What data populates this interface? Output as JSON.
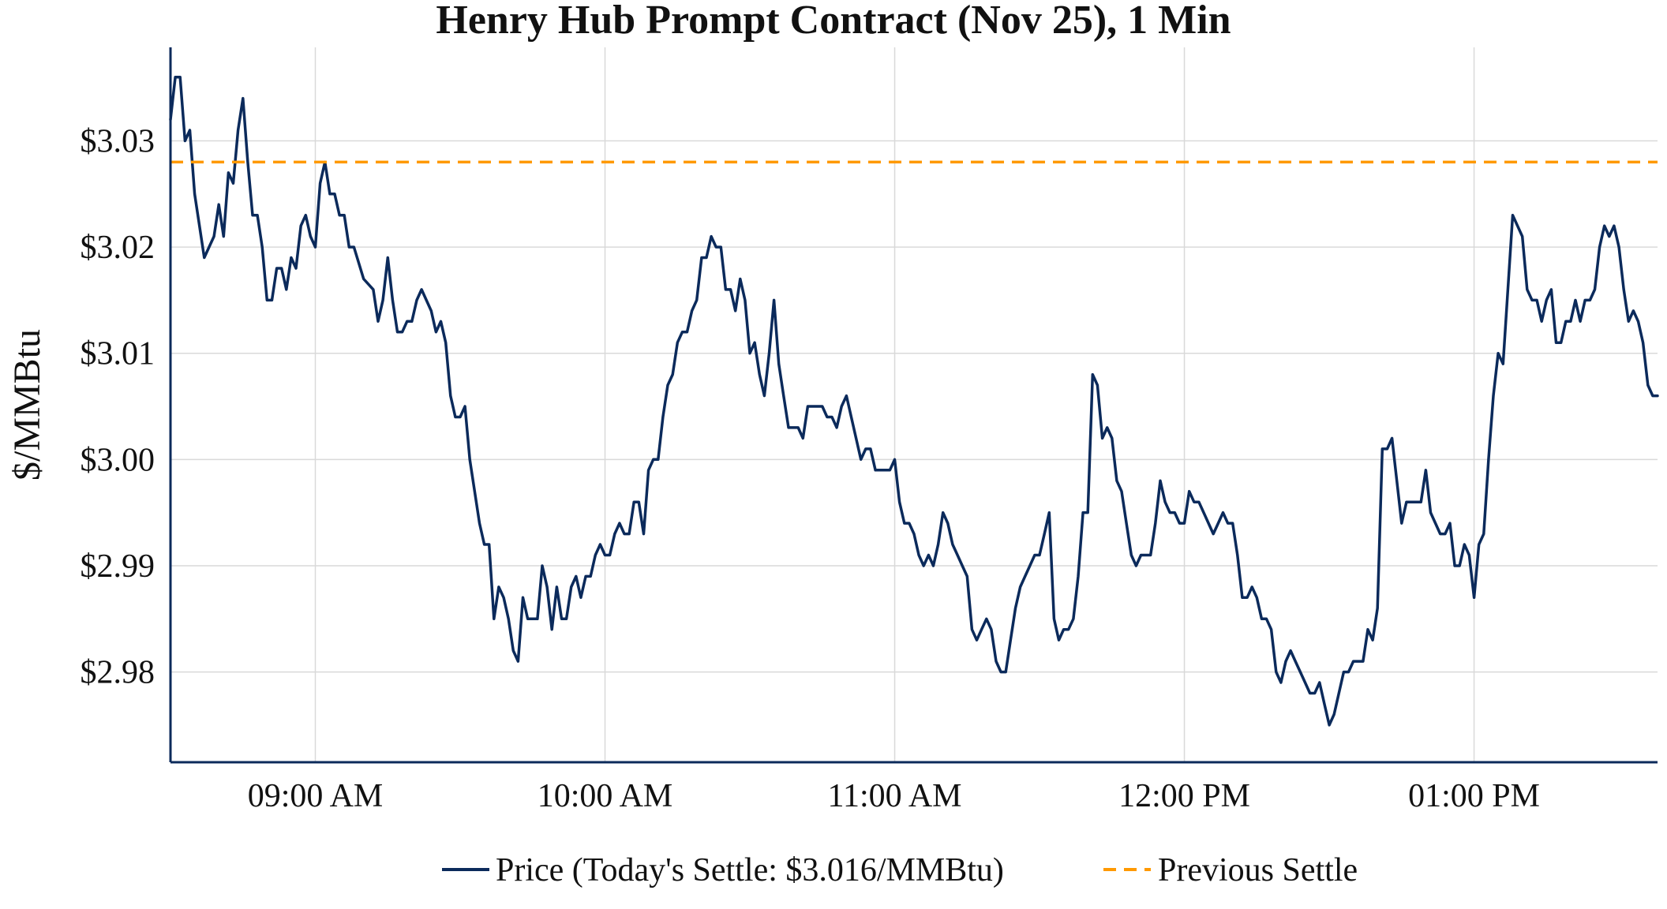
{
  "chart_data": {
    "type": "line",
    "title": "Henry Hub Prompt Contract (Nov 25), 1 Min",
    "ylabel": "$/MMBtu",
    "xlabel": "",
    "ylim": [
      2.9715,
      3.0388
    ],
    "y_ticks": [
      2.98,
      2.99,
      3.0,
      3.01,
      3.02,
      3.03
    ],
    "y_tick_labels": [
      "$2.98",
      "$2.99",
      "$3.00",
      "$3.01",
      "$3.02",
      "$3.03"
    ],
    "x_range": [
      "08:30",
      "13:38"
    ],
    "x_ticks": [
      "09:00",
      "10:00",
      "11:00",
      "12:00",
      "13:00"
    ],
    "x_tick_labels": [
      "09:00 AM",
      "10:00 AM",
      "11:00 AM",
      "12:00 PM",
      "01:00 PM"
    ],
    "grid": true,
    "legend_position": "bottom-center",
    "series": [
      {
        "name": "Price (Today's Settle: $3.016/MMBtu)",
        "color": "#0b2a5b",
        "style": "solid",
        "x": [
          "08:30",
          "08:31",
          "08:32",
          "08:33",
          "08:34",
          "08:35",
          "08:37",
          "08:38",
          "08:39",
          "08:40",
          "08:41",
          "08:42",
          "08:43",
          "08:44",
          "08:45",
          "08:46",
          "08:47",
          "08:48",
          "08:49",
          "08:50",
          "08:51",
          "08:52",
          "08:53",
          "08:54",
          "08:55",
          "08:56",
          "08:57",
          "08:58",
          "08:59",
          "09:00",
          "09:01",
          "09:02",
          "09:03",
          "09:04",
          "09:05",
          "09:06",
          "09:07",
          "09:08",
          "09:10",
          "09:12",
          "09:13",
          "09:14",
          "09:15",
          "09:16",
          "09:17",
          "09:18",
          "09:19",
          "09:20",
          "09:21",
          "09:22",
          "09:23",
          "09:24",
          "09:25",
          "09:26",
          "09:27",
          "09:28",
          "09:29",
          "09:30",
          "09:31",
          "09:32",
          "09:34",
          "09:35",
          "09:36",
          "09:37",
          "09:38",
          "09:39",
          "09:40",
          "09:41",
          "09:42",
          "09:43",
          "09:44",
          "09:45",
          "09:46",
          "09:47",
          "09:48",
          "09:49",
          "09:50",
          "09:51",
          "09:52",
          "09:53",
          "09:54",
          "09:55",
          "09:56",
          "09:57",
          "09:58",
          "09:59",
          "10:00",
          "10:01",
          "10:02",
          "10:03",
          "10:04",
          "10:05",
          "10:06",
          "10:07",
          "10:08",
          "10:09",
          "10:10",
          "10:11",
          "10:12",
          "10:13",
          "10:14",
          "10:15",
          "10:16",
          "10:17",
          "10:18",
          "10:19",
          "10:20",
          "10:21",
          "10:22",
          "10:23",
          "10:24",
          "10:25",
          "10:26",
          "10:27",
          "10:28",
          "10:29",
          "10:30",
          "10:31",
          "10:32",
          "10:33",
          "10:34",
          "10:35",
          "10:36",
          "10:37",
          "10:38",
          "10:39",
          "10:40",
          "10:41",
          "10:42",
          "10:43",
          "10:44",
          "10:45",
          "10:46",
          "10:47",
          "10:48",
          "10:49",
          "10:50",
          "10:51",
          "10:52",
          "10:53",
          "10:54",
          "10:55",
          "10:56",
          "10:57",
          "10:58",
          "10:59",
          "11:00",
          "11:01",
          "11:02",
          "11:03",
          "11:04",
          "11:05",
          "11:06",
          "11:07",
          "11:08",
          "11:09",
          "11:10",
          "11:11",
          "11:12",
          "11:13",
          "11:14",
          "11:15",
          "11:16",
          "11:17",
          "11:18",
          "11:19",
          "11:20",
          "11:21",
          "11:22",
          "11:23",
          "11:24",
          "11:25",
          "11:26",
          "11:27",
          "11:28",
          "11:29",
          "11:30",
          "11:31",
          "11:32",
          "11:33",
          "11:34",
          "11:35",
          "11:36",
          "11:37",
          "11:38",
          "11:39",
          "11:40",
          "11:41",
          "11:42",
          "11:43",
          "11:44",
          "11:45",
          "11:46",
          "11:47",
          "11:48",
          "11:49",
          "11:50",
          "11:51",
          "11:52",
          "11:53",
          "11:54",
          "11:55",
          "11:56",
          "11:57",
          "11:58",
          "11:59",
          "12:00",
          "12:01",
          "12:02",
          "12:03",
          "12:04",
          "12:05",
          "12:06",
          "12:07",
          "12:08",
          "12:09",
          "12:10",
          "12:11",
          "12:12",
          "12:13",
          "12:14",
          "12:15",
          "12:16",
          "12:17",
          "12:18",
          "12:19",
          "12:20",
          "12:21",
          "12:22",
          "12:23",
          "12:24",
          "12:25",
          "12:26",
          "12:27",
          "12:28",
          "12:29",
          "12:30",
          "12:31",
          "12:32",
          "12:33",
          "12:34",
          "12:35",
          "12:36",
          "12:37",
          "12:38",
          "12:39",
          "12:40",
          "12:41",
          "12:42",
          "12:43",
          "12:44",
          "12:45",
          "12:46",
          "12:47",
          "12:48",
          "12:49",
          "12:50",
          "12:51",
          "12:52",
          "12:53",
          "12:54",
          "12:55",
          "12:56",
          "12:57",
          "12:58",
          "12:59",
          "13:00",
          "13:01",
          "13:02",
          "13:03",
          "13:04",
          "13:05",
          "13:06",
          "13:07",
          "13:08",
          "13:09",
          "13:10",
          "13:11",
          "13:12",
          "13:13",
          "13:14",
          "13:15",
          "13:16",
          "13:17",
          "13:18",
          "13:19",
          "13:20",
          "13:21",
          "13:22",
          "13:23",
          "13:24",
          "13:25",
          "13:26",
          "13:27",
          "13:28",
          "13:29",
          "13:30",
          "13:31",
          "13:32",
          "13:33",
          "13:34",
          "13:35",
          "13:36",
          "13:37",
          "13:38"
        ],
        "values": [
          3.032,
          3.036,
          3.036,
          3.03,
          3.031,
          3.025,
          3.019,
          3.02,
          3.021,
          3.024,
          3.021,
          3.027,
          3.026,
          3.031,
          3.034,
          3.028,
          3.023,
          3.023,
          3.02,
          3.015,
          3.015,
          3.018,
          3.018,
          3.016,
          3.019,
          3.018,
          3.022,
          3.023,
          3.021,
          3.02,
          3.026,
          3.028,
          3.025,
          3.025,
          3.023,
          3.023,
          3.02,
          3.02,
          3.017,
          3.016,
          3.013,
          3.015,
          3.019,
          3.015,
          3.012,
          3.012,
          3.013,
          3.013,
          3.015,
          3.016,
          3.015,
          3.014,
          3.012,
          3.013,
          3.011,
          3.006,
          3.004,
          3.004,
          3.005,
          3.0,
          2.994,
          2.992,
          2.992,
          2.985,
          2.988,
          2.987,
          2.985,
          2.982,
          2.981,
          2.987,
          2.985,
          2.985,
          2.985,
          2.99,
          2.988,
          2.984,
          2.988,
          2.985,
          2.985,
          2.988,
          2.989,
          2.987,
          2.989,
          2.989,
          2.991,
          2.992,
          2.991,
          2.991,
          2.993,
          2.994,
          2.993,
          2.993,
          2.996,
          2.996,
          2.993,
          2.999,
          3.0,
          3.0,
          3.004,
          3.007,
          3.008,
          3.011,
          3.012,
          3.012,
          3.014,
          3.015,
          3.019,
          3.019,
          3.021,
          3.02,
          3.02,
          3.016,
          3.016,
          3.014,
          3.017,
          3.015,
          3.01,
          3.011,
          3.008,
          3.006,
          3.01,
          3.015,
          3.009,
          3.006,
          3.003,
          3.003,
          3.003,
          3.002,
          3.005,
          3.005,
          3.005,
          3.005,
          3.004,
          3.004,
          3.003,
          3.005,
          3.006,
          3.004,
          3.002,
          3.0,
          3.001,
          3.001,
          2.999,
          2.999,
          2.999,
          2.999,
          3.0,
          2.996,
          2.994,
          2.994,
          2.993,
          2.991,
          2.99,
          2.991,
          2.99,
          2.992,
          2.995,
          2.994,
          2.992,
          2.991,
          2.99,
          2.989,
          2.984,
          2.983,
          2.984,
          2.985,
          2.984,
          2.981,
          2.98,
          2.98,
          2.983,
          2.986,
          2.988,
          2.989,
          2.99,
          2.991,
          2.991,
          2.993,
          2.995,
          2.985,
          2.983,
          2.984,
          2.984,
          2.985,
          2.989,
          2.995,
          2.995,
          3.008,
          3.007,
          3.002,
          3.003,
          3.002,
          2.998,
          2.997,
          2.994,
          2.991,
          2.99,
          2.991,
          2.991,
          2.991,
          2.994,
          2.998,
          2.996,
          2.995,
          2.995,
          2.994,
          2.994,
          2.997,
          2.996,
          2.996,
          2.995,
          2.994,
          2.993,
          2.994,
          2.995,
          2.994,
          2.994,
          2.991,
          2.987,
          2.987,
          2.988,
          2.987,
          2.985,
          2.985,
          2.984,
          2.98,
          2.979,
          2.981,
          2.982,
          2.981,
          2.98,
          2.979,
          2.978,
          2.978,
          2.979,
          2.977,
          2.975,
          2.976,
          2.978,
          2.98,
          2.98,
          2.981,
          2.981,
          2.981,
          2.984,
          2.983,
          2.986,
          3.001,
          3.001,
          3.002,
          2.998,
          2.994,
          2.996,
          2.996,
          2.996,
          2.996,
          2.999,
          2.995,
          2.994,
          2.993,
          2.993,
          2.994,
          2.99,
          2.99,
          2.992,
          2.991,
          2.987,
          2.992,
          2.993,
          3.0,
          3.006,
          3.01,
          3.009,
          3.016,
          3.023,
          3.022,
          3.021,
          3.016,
          3.015,
          3.015,
          3.013,
          3.015,
          3.016,
          3.011,
          3.011,
          3.013,
          3.013,
          3.015,
          3.013,
          3.015,
          3.015,
          3.016,
          3.02,
          3.022,
          3.021,
          3.022,
          3.02,
          3.016,
          3.013,
          3.014,
          3.013,
          3.011,
          3.007,
          3.006,
          3.006
        ]
      },
      {
        "name": "Previous Settle",
        "color": "#ff9900",
        "style": "dashed",
        "value": 3.028
      }
    ]
  }
}
